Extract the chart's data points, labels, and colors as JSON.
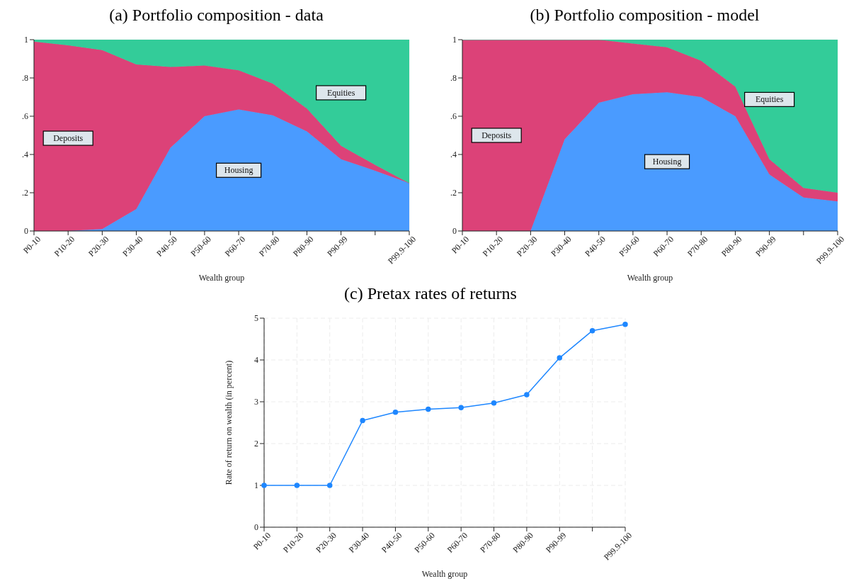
{
  "chart_data": [
    {
      "type": "area",
      "title": "(a) Portfolio composition - data",
      "xlabel": "Wealth group",
      "stacked": true,
      "categories": [
        "P0-10",
        "P10-20",
        "P20-30",
        "P30-40",
        "P40-50",
        "P50-60",
        "P60-70",
        "P70-80",
        "P80-90",
        "P90-99",
        null,
        "P99.9-100"
      ],
      "series": [
        {
          "name": "Housing",
          "color": "#4a9bff",
          "values": [
            0,
            0,
            0.01,
            0.115,
            0.435,
            0.6,
            0.635,
            0.605,
            0.52,
            0.375,
            0.315,
            0.25
          ]
        },
        {
          "name": "Deposits",
          "color": "#dc4278",
          "values": [
            0.99,
            0.97,
            0.935,
            0.755,
            0.422,
            0.265,
            0.205,
            0.165,
            0.12,
            0.07,
            0.03,
            0
          ]
        },
        {
          "name": "Equities",
          "color": "#33cc99",
          "values": [
            0.01,
            0.03,
            0.055,
            0.13,
            0.143,
            0.135,
            0.16,
            0.23,
            0.36,
            0.555,
            0.655,
            0.75
          ]
        }
      ],
      "ylim": [
        0,
        1
      ],
      "yticks": [
        0,
        {
          "value": 0.2,
          "label": ".2"
        },
        {
          "value": 0.4,
          "label": ".4"
        },
        {
          "value": 0.6,
          "label": ".6"
        },
        {
          "value": 0.8,
          "label": ".8"
        },
        1
      ],
      "grid": true,
      "legend": false
    },
    {
      "type": "area",
      "title": "(b) Portfolio composition - model",
      "xlabel": "Wealth group",
      "stacked": true,
      "categories": [
        "P0-10",
        "P10-20",
        "P20-30",
        "P30-40",
        "P40-50",
        "P50-60",
        "P60-70",
        "P70-80",
        "P80-90",
        "P90-99",
        null,
        "P99.9-100"
      ],
      "series": [
        {
          "name": "Housing",
          "color": "#4a9bff",
          "values": [
            0,
            0,
            0,
            0.48,
            0.67,
            0.715,
            0.725,
            0.7,
            0.6,
            0.295,
            0.175,
            0.155
          ]
        },
        {
          "name": "Deposits",
          "color": "#dc4278",
          "values": [
            1,
            1,
            1,
            0.52,
            0.33,
            0.265,
            0.235,
            0.19,
            0.155,
            0.08,
            0.05,
            0.045
          ]
        },
        {
          "name": "Equities",
          "color": "#33cc99",
          "values": [
            0,
            0,
            0,
            0,
            0,
            0.02,
            0.04,
            0.11,
            0.245,
            0.625,
            0.775,
            0.8
          ]
        }
      ],
      "ylim": [
        0,
        1
      ],
      "yticks": [
        0,
        {
          "value": 0.2,
          "label": ".2"
        },
        {
          "value": 0.4,
          "label": ".4"
        },
        {
          "value": 0.6,
          "label": ".6"
        },
        {
          "value": 0.8,
          "label": ".8"
        },
        1
      ],
      "grid": true,
      "legend": false
    },
    {
      "type": "line",
      "title": "(c) Pretax rates of returns",
      "xlabel": "Wealth group",
      "ylabel": "Rate of return on wealth (in percent)",
      "categories": [
        "P0-10",
        "P10-20",
        "P20-30",
        "P30-40",
        "P40-50",
        "P50-60",
        "P60-70",
        "P70-80",
        "P80-90",
        "P90-99",
        null,
        "P99.9-100"
      ],
      "series": [
        {
          "color": "#1e87ff",
          "values": [
            1,
            1,
            1,
            2.55,
            2.75,
            2.82,
            2.86,
            2.97,
            3.17,
            4.05,
            4.7,
            4.85
          ]
        }
      ],
      "ylim": [
        0,
        5
      ],
      "yticks": [
        0,
        1,
        2,
        3,
        4,
        5
      ],
      "grid": true,
      "legend": false,
      "marker": "circle",
      "line_style": "solid"
    }
  ]
}
